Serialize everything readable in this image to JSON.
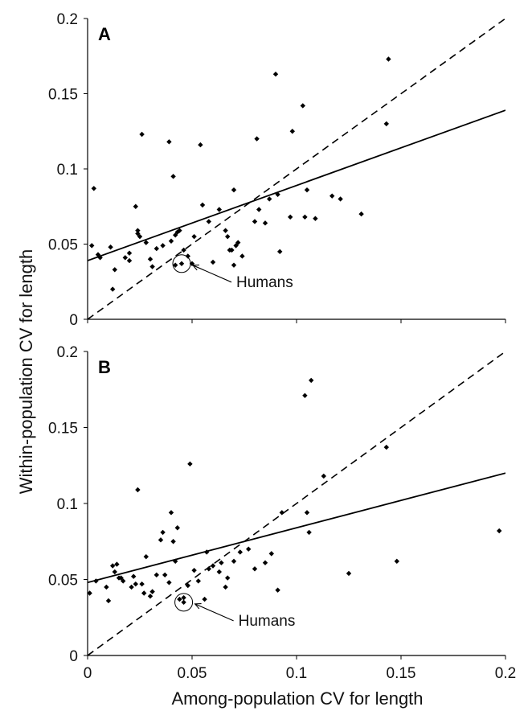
{
  "chart_data": {
    "type": "scatter",
    "xlabel": "Among-population CV for length",
    "ylabel": "Within-population CV for length",
    "xlim": [
      0,
      0.2
    ],
    "ylim": [
      0,
      0.2
    ],
    "x_ticks": [
      "0",
      "0.05",
      "0.1",
      "0.15",
      "0.2"
    ],
    "y_ticks": [
      "0",
      "0.05",
      "0.1",
      "0.15",
      "0.2"
    ],
    "grid": false,
    "panels": [
      {
        "label": "A",
        "annotation": {
          "text": "Humans",
          "point": [
            0.045,
            0.037
          ]
        },
        "identity_line": {
          "style": "dashed",
          "slope": 1,
          "intercept": 0
        },
        "regression_line": {
          "style": "solid",
          "slope": 0.5,
          "intercept": 0.039
        },
        "points": [
          [
            0.002,
            0.049
          ],
          [
            0.003,
            0.087
          ],
          [
            0.005,
            0.043
          ],
          [
            0.006,
            0.041
          ],
          [
            0.011,
            0.048
          ],
          [
            0.012,
            0.02
          ],
          [
            0.013,
            0.033
          ],
          [
            0.018,
            0.041
          ],
          [
            0.02,
            0.044
          ],
          [
            0.02,
            0.039
          ],
          [
            0.023,
            0.075
          ],
          [
            0.024,
            0.059
          ],
          [
            0.024,
            0.057
          ],
          [
            0.025,
            0.055
          ],
          [
            0.026,
            0.123
          ],
          [
            0.028,
            0.051
          ],
          [
            0.03,
            0.04
          ],
          [
            0.031,
            0.035
          ],
          [
            0.033,
            0.047
          ],
          [
            0.036,
            0.049
          ],
          [
            0.039,
            0.118
          ],
          [
            0.04,
            0.052
          ],
          [
            0.041,
            0.095
          ],
          [
            0.042,
            0.056
          ],
          [
            0.042,
            0.036
          ],
          [
            0.043,
            0.058
          ],
          [
            0.044,
            0.059
          ],
          [
            0.046,
            0.046
          ],
          [
            0.048,
            0.042
          ],
          [
            0.05,
            0.037
          ],
          [
            0.051,
            0.055
          ],
          [
            0.054,
            0.116
          ],
          [
            0.055,
            0.076
          ],
          [
            0.058,
            0.065
          ],
          [
            0.06,
            0.038
          ],
          [
            0.063,
            0.073
          ],
          [
            0.066,
            0.059
          ],
          [
            0.067,
            0.055
          ],
          [
            0.068,
            0.046
          ],
          [
            0.069,
            0.046
          ],
          [
            0.07,
            0.086
          ],
          [
            0.07,
            0.036
          ],
          [
            0.071,
            0.049
          ],
          [
            0.072,
            0.051
          ],
          [
            0.074,
            0.042
          ],
          [
            0.08,
            0.065
          ],
          [
            0.081,
            0.12
          ],
          [
            0.082,
            0.073
          ],
          [
            0.085,
            0.064
          ],
          [
            0.087,
            0.08
          ],
          [
            0.09,
            0.163
          ],
          [
            0.091,
            0.083
          ],
          [
            0.092,
            0.045
          ],
          [
            0.097,
            0.068
          ],
          [
            0.098,
            0.125
          ],
          [
            0.103,
            0.142
          ],
          [
            0.104,
            0.068
          ],
          [
            0.105,
            0.086
          ],
          [
            0.109,
            0.067
          ],
          [
            0.117,
            0.082
          ],
          [
            0.121,
            0.08
          ],
          [
            0.131,
            0.07
          ],
          [
            0.143,
            0.13
          ],
          [
            0.144,
            0.173
          ]
        ]
      },
      {
        "label": "B",
        "annotation": {
          "text": "Humans",
          "point": [
            0.046,
            0.035
          ]
        },
        "identity_line": {
          "style": "dashed",
          "slope": 1,
          "intercept": 0
        },
        "regression_line": {
          "style": "solid",
          "slope": 0.36,
          "intercept": 0.048
        },
        "points": [
          [
            0.001,
            0.041
          ],
          [
            0.004,
            0.049
          ],
          [
            0.009,
            0.045
          ],
          [
            0.01,
            0.036
          ],
          [
            0.012,
            0.059
          ],
          [
            0.013,
            0.055
          ],
          [
            0.014,
            0.06
          ],
          [
            0.015,
            0.051
          ],
          [
            0.016,
            0.051
          ],
          [
            0.017,
            0.049
          ],
          [
            0.021,
            0.045
          ],
          [
            0.022,
            0.052
          ],
          [
            0.023,
            0.047
          ],
          [
            0.024,
            0.109
          ],
          [
            0.026,
            0.047
          ],
          [
            0.027,
            0.041
          ],
          [
            0.028,
            0.065
          ],
          [
            0.03,
            0.039
          ],
          [
            0.031,
            0.042
          ],
          [
            0.033,
            0.053
          ],
          [
            0.035,
            0.076
          ],
          [
            0.036,
            0.081
          ],
          [
            0.037,
            0.053
          ],
          [
            0.039,
            0.048
          ],
          [
            0.04,
            0.094
          ],
          [
            0.041,
            0.075
          ],
          [
            0.042,
            0.062
          ],
          [
            0.043,
            0.084
          ],
          [
            0.044,
            0.037
          ],
          [
            0.046,
            0.038
          ],
          [
            0.048,
            0.046
          ],
          [
            0.049,
            0.126
          ],
          [
            0.051,
            0.056
          ],
          [
            0.053,
            0.049
          ],
          [
            0.056,
            0.037
          ],
          [
            0.057,
            0.068
          ],
          [
            0.058,
            0.057
          ],
          [
            0.06,
            0.059
          ],
          [
            0.063,
            0.055
          ],
          [
            0.064,
            0.061
          ],
          [
            0.066,
            0.045
          ],
          [
            0.067,
            0.051
          ],
          [
            0.07,
            0.062
          ],
          [
            0.073,
            0.068
          ],
          [
            0.077,
            0.07
          ],
          [
            0.08,
            0.057
          ],
          [
            0.085,
            0.061
          ],
          [
            0.088,
            0.067
          ],
          [
            0.091,
            0.043
          ],
          [
            0.093,
            0.094
          ],
          [
            0.104,
            0.171
          ],
          [
            0.105,
            0.094
          ],
          [
            0.106,
            0.081
          ],
          [
            0.107,
            0.181
          ],
          [
            0.113,
            0.118
          ],
          [
            0.125,
            0.054
          ],
          [
            0.143,
            0.137
          ],
          [
            0.148,
            0.062
          ],
          [
            0.197,
            0.082
          ]
        ]
      }
    ]
  }
}
